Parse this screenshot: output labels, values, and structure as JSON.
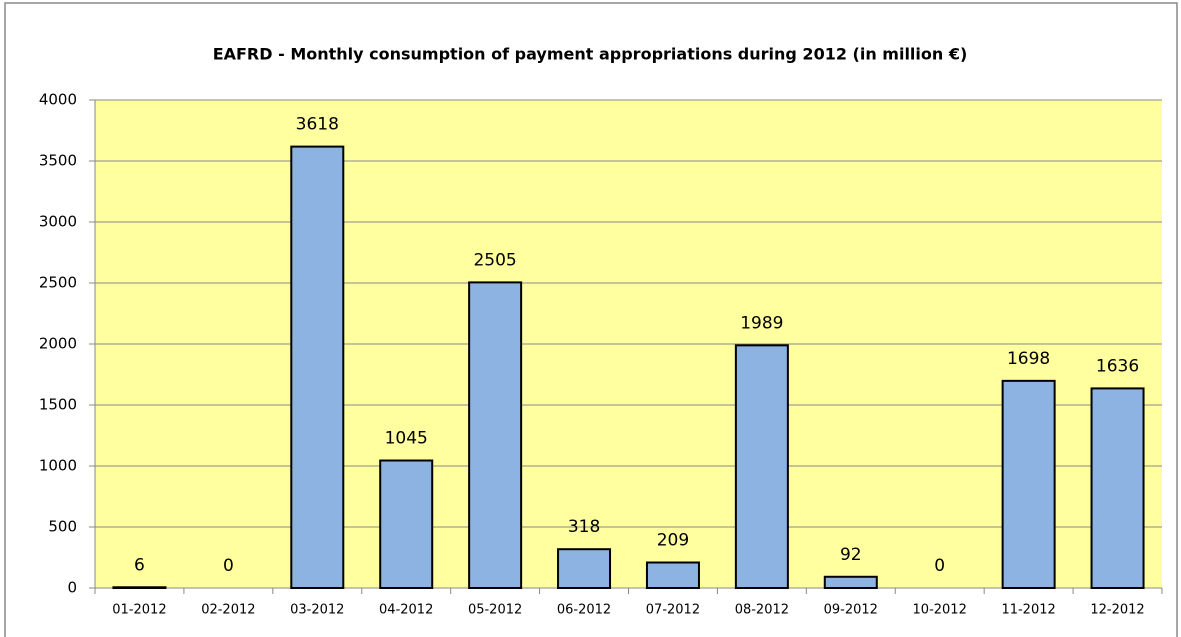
{
  "chart_data": {
    "type": "bar",
    "title": "EAFRD - Monthly consumption of payment appropriations  during 2012 (in million €)",
    "categories": [
      "01-2012",
      "02-2012",
      "03-2012",
      "04-2012",
      "05-2012",
      "06-2012",
      "07-2012",
      "08-2012",
      "09-2012",
      "10-2012",
      "11-2012",
      "12-2012"
    ],
    "values": [
      6,
      0,
      3618,
      1045,
      2505,
      318,
      209,
      1989,
      92,
      0,
      1698,
      1636
    ],
    "color": "#8db3e2",
    "ylim": [
      0,
      4000
    ],
    "yticks": [
      0,
      500,
      1000,
      1500,
      2000,
      2500,
      3000,
      3500,
      4000
    ],
    "grid": true
  }
}
